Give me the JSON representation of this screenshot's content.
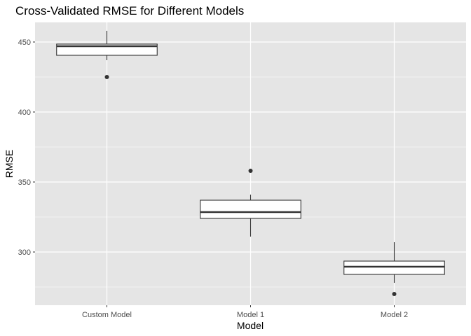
{
  "chart_data": {
    "type": "boxplot",
    "title": "Cross-Validated RMSE for Different Models",
    "xlabel": "Model",
    "ylabel": "RMSE",
    "ylim": [
      262,
      464
    ],
    "yticks": [
      300,
      350,
      400,
      450
    ],
    "categories": [
      "Custom Model",
      "Model 1",
      "Model 2"
    ],
    "boxes": [
      {
        "category": "Custom Model",
        "whisker_low": 437,
        "q1": 440.5,
        "median": 447,
        "q3": 448.5,
        "whisker_high": 458,
        "outliers": [
          425
        ]
      },
      {
        "category": "Model 1",
        "whisker_low": 311,
        "q1": 324,
        "median": 328.5,
        "q3": 337,
        "whisker_high": 341,
        "outliers": [
          358
        ]
      },
      {
        "category": "Model 2",
        "whisker_low": 278,
        "q1": 284,
        "median": 289.5,
        "q3": 293.5,
        "whisker_high": 307,
        "outliers": [
          270
        ]
      }
    ],
    "grid": true,
    "legend": "none",
    "colors": {
      "panel": "#e5e5e5",
      "grid": "#ffffff",
      "box_fill": "#ffffff",
      "box_line": "#333333",
      "point": "#333333",
      "axis_text": "#4d4d4d",
      "title": "#000000"
    }
  }
}
